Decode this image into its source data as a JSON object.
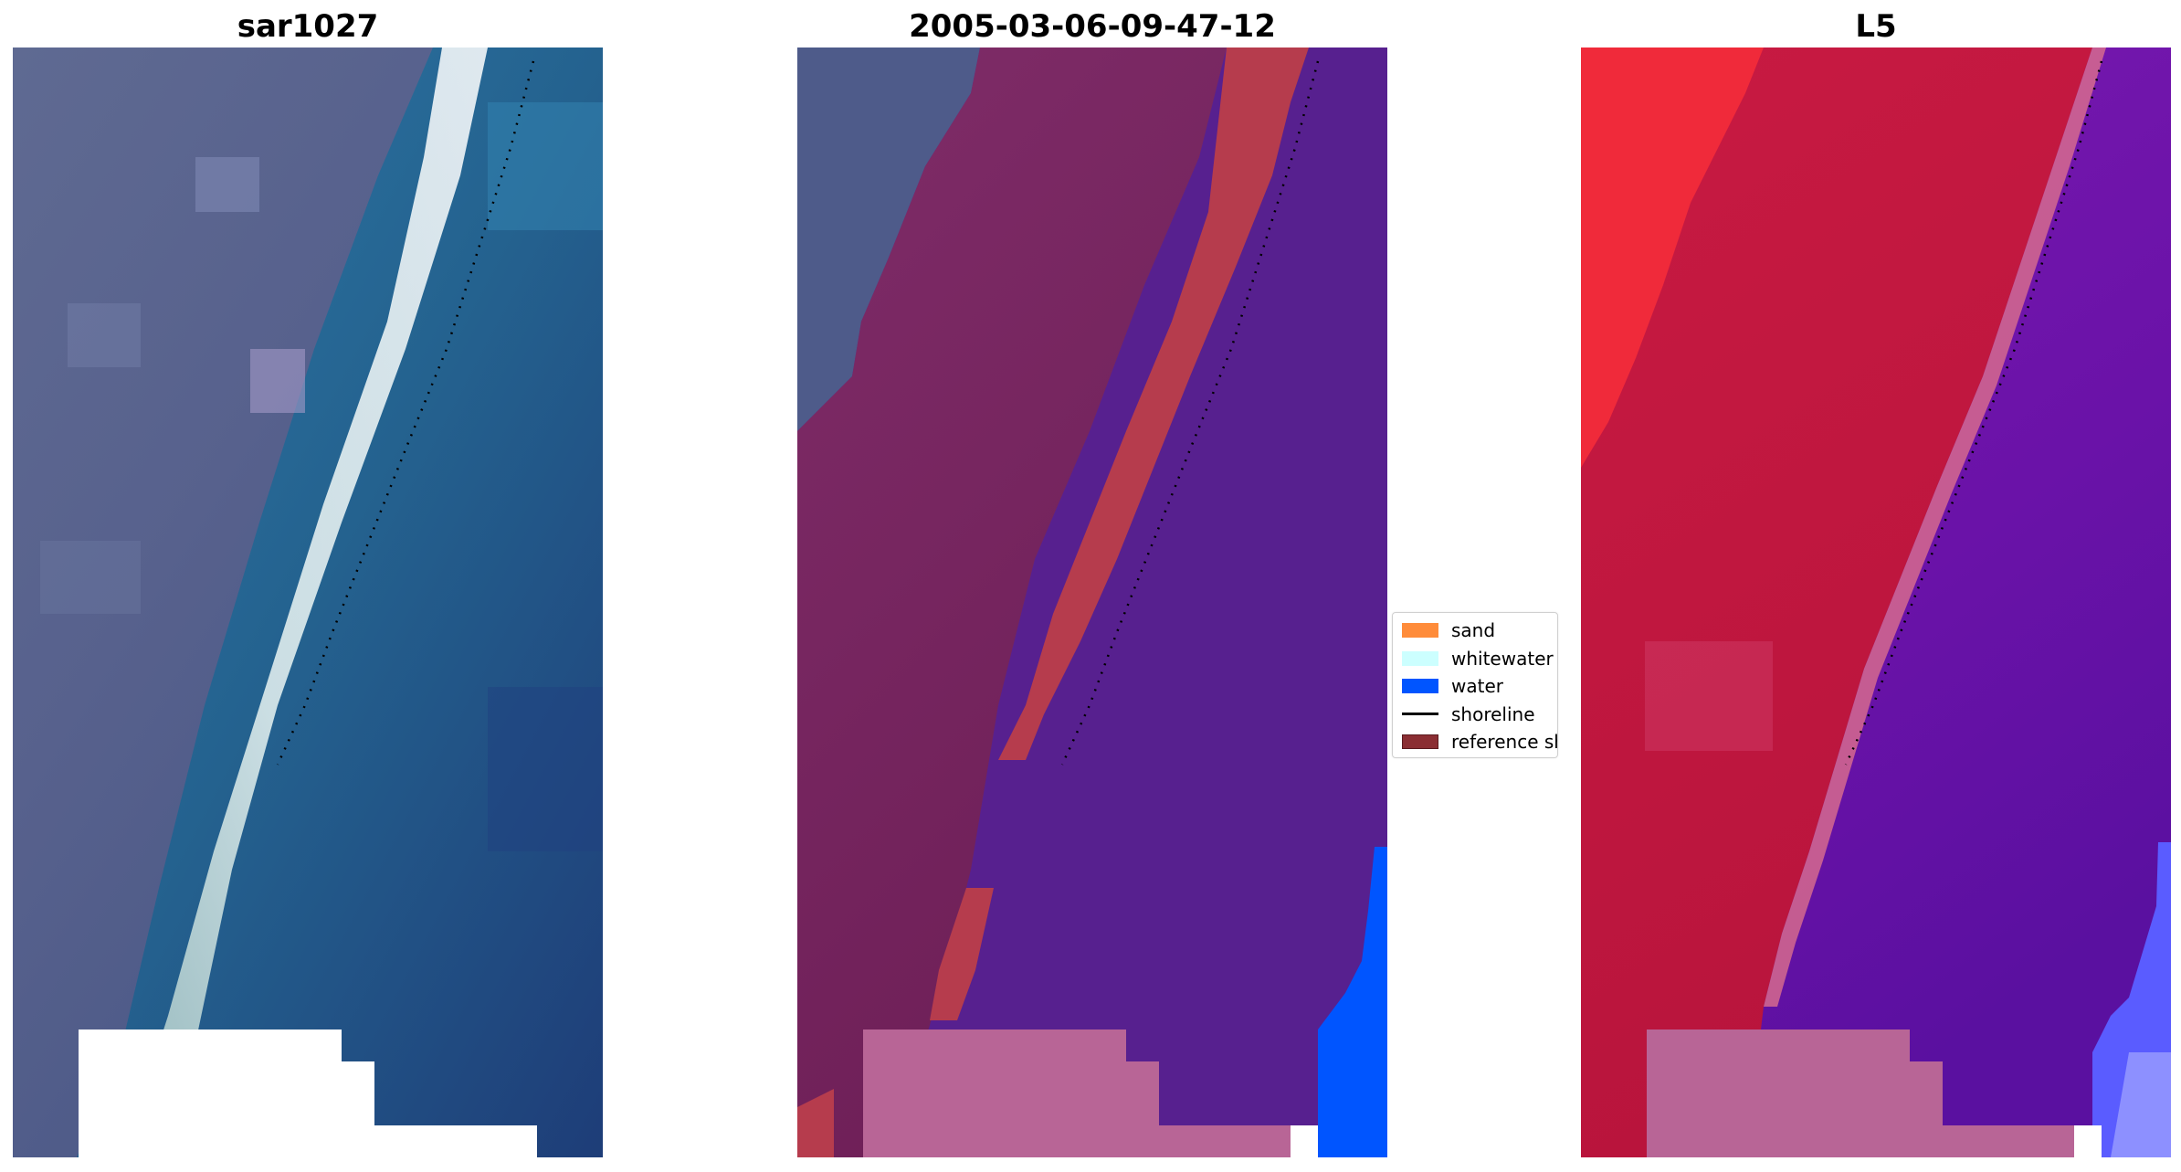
{
  "panels": [
    {
      "title": "sar1027"
    },
    {
      "title": "2005-03-06-09-47-12"
    },
    {
      "title": "L5"
    }
  ],
  "legend": {
    "items": [
      {
        "label": "sand",
        "color": "#ff8c3a"
      },
      {
        "label": "whitewater",
        "color": "#ccffff"
      },
      {
        "label": "water",
        "color": "#0055ff"
      },
      {
        "label": "shoreline",
        "color": "#000000"
      },
      {
        "label": "reference shoreline",
        "color": "#8b2e33"
      }
    ]
  }
}
